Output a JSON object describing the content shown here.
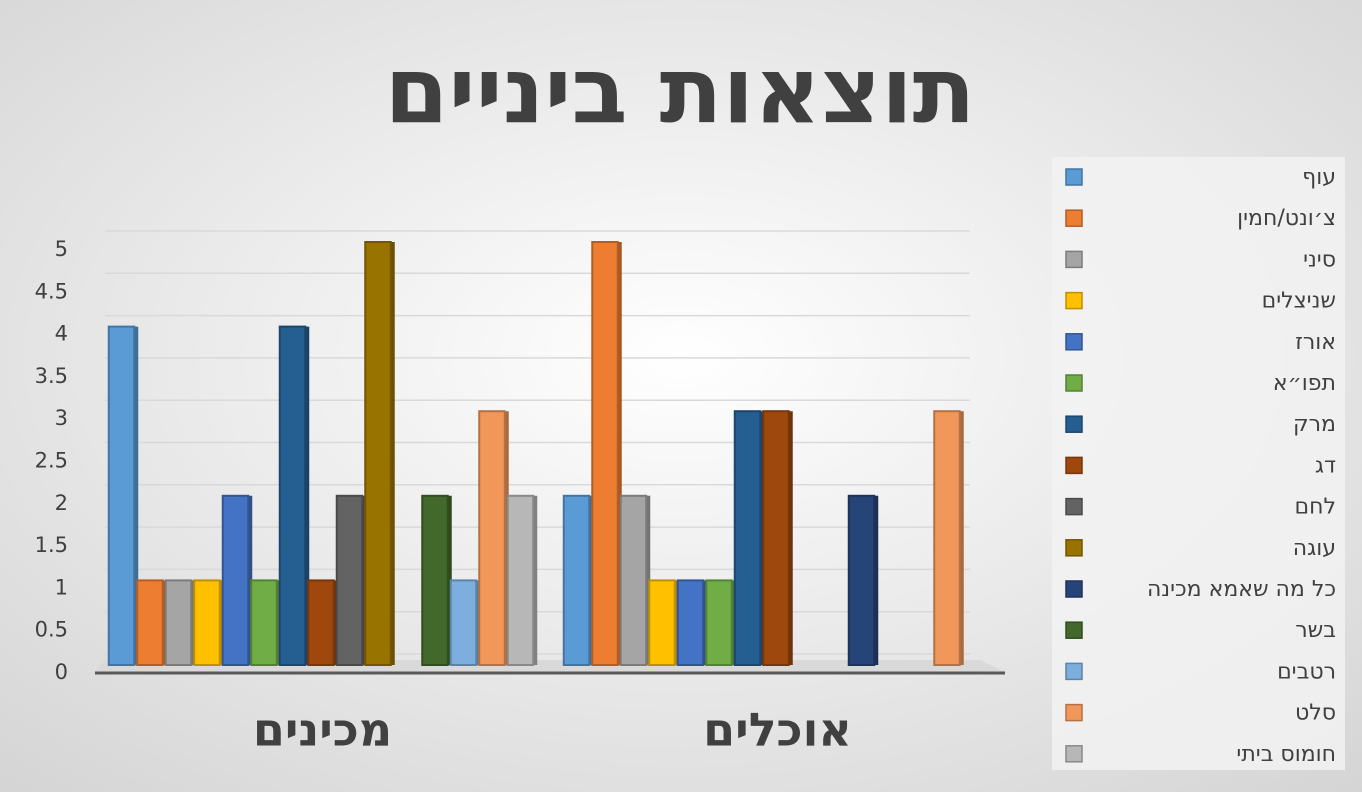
{
  "chart_data": {
    "type": "bar",
    "title": "תוצאות ביניים",
    "categories": [
      "מכינים",
      "אוכלים"
    ],
    "series": [
      {
        "name": "עוף",
        "color": "#5b9bd5",
        "values": [
          4,
          2
        ]
      },
      {
        "name": "צ׳ונט/חמין",
        "color": "#ed7d31",
        "values": [
          1,
          5
        ]
      },
      {
        "name": "סיני",
        "color": "#a5a5a5",
        "values": [
          1,
          2
        ]
      },
      {
        "name": "שניצלים",
        "color": "#ffc000",
        "values": [
          1,
          1
        ]
      },
      {
        "name": "אורז",
        "color": "#4472c4",
        "values": [
          2,
          1
        ]
      },
      {
        "name": "תפו״א",
        "color": "#70ad47",
        "values": [
          1,
          1
        ]
      },
      {
        "name": "מרק",
        "color": "#255e91",
        "values": [
          4,
          3
        ]
      },
      {
        "name": "דג",
        "color": "#9e480e",
        "values": [
          1,
          3
        ]
      },
      {
        "name": "לחם",
        "color": "#636363",
        "values": [
          2,
          0
        ]
      },
      {
        "name": "עוגה",
        "color": "#997300",
        "values": [
          5,
          0
        ]
      },
      {
        "name": "כל מה שאמא מכינה",
        "color": "#264478",
        "values": [
          0,
          2
        ]
      },
      {
        "name": "בשר",
        "color": "#43682b",
        "values": [
          2,
          0
        ]
      },
      {
        "name": "רטבים",
        "color": "#7cafdd",
        "values": [
          1,
          0
        ]
      },
      {
        "name": "סלט",
        "color": "#f1975a",
        "values": [
          3,
          3
        ]
      },
      {
        "name": "חומוס ביתי",
        "color": "#b7b7b7",
        "values": [
          2,
          0
        ]
      }
    ],
    "ylim": [
      0,
      5
    ],
    "yticks": [
      0,
      0.5,
      1,
      1.5,
      2,
      2.5,
      3,
      3.5,
      4,
      4.5,
      5
    ],
    "grid": true,
    "legend": "right"
  }
}
